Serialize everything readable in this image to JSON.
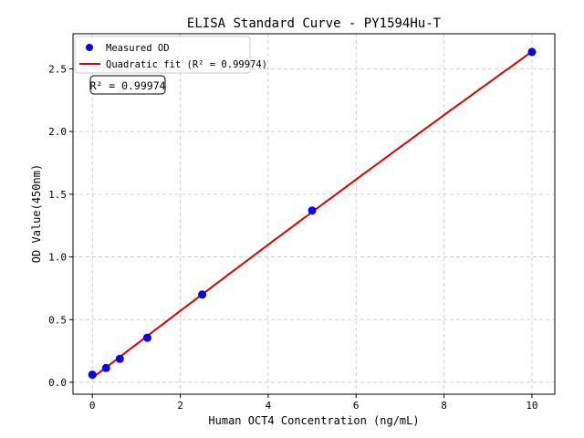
{
  "chart_data": {
    "type": "scatter",
    "title": "ELISA Standard Curve - PY1594Hu-T",
    "xlabel": "Human OCT4 Concentration (ng/mL)",
    "ylabel": "OD Value(450nm)",
    "xlim": [
      -0.44,
      10.52
    ],
    "ylim": [
      -0.095,
      2.78
    ],
    "xticks": [
      0,
      2,
      4,
      6,
      8,
      10
    ],
    "yticks": [
      0.0,
      0.5,
      1.0,
      1.5,
      2.0,
      2.5
    ],
    "xtick_labels": [
      "0",
      "2",
      "4",
      "6",
      "8",
      "10"
    ],
    "ytick_labels": [
      "0.0",
      "0.5",
      "1.0",
      "1.5",
      "2.0",
      "2.5"
    ],
    "grid": true,
    "legend_placement": "top-left",
    "series": [
      {
        "name": "Measured OD",
        "kind": "scatter",
        "color": "#0000ff",
        "x": [
          0,
          0.3125,
          0.625,
          1.25,
          2.5,
          5,
          10
        ],
        "y": [
          0.061,
          0.114,
          0.187,
          0.355,
          0.7,
          1.37,
          2.635
        ]
      },
      {
        "name": "Quadratic fit (R² = 0.99974)",
        "kind": "line",
        "color": "#dd0000"
      }
    ],
    "annotation": "R² = 0.99974"
  }
}
